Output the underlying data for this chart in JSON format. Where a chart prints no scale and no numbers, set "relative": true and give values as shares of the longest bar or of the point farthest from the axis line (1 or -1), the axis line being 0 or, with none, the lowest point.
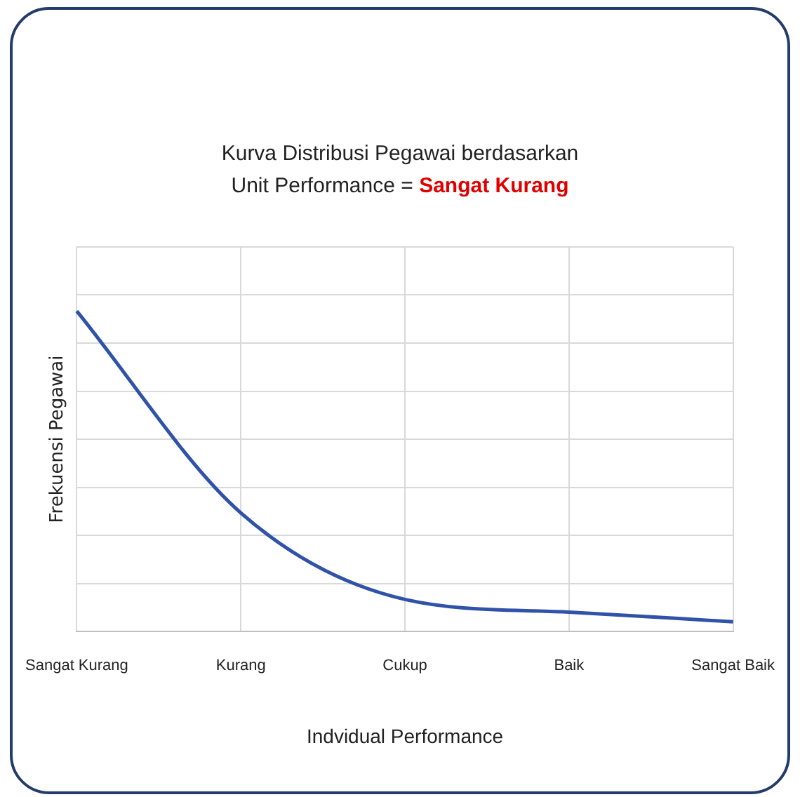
{
  "chart_data": {
    "type": "line",
    "title": "Kurva Distribusi Pegawai berdasarkan",
    "subtitle": "Unit Performance = Sangat Kurang",
    "xlabel": "Indvidual Performance",
    "ylabel": "Frekuensi Pegawai",
    "categories": [
      "Sangat Kurang",
      "Kurang",
      "Cukup",
      "Baik",
      "Sangat Baik"
    ],
    "series": [
      {
        "color": "#3052a8",
        "values": [
          1,
          0.37,
          0.1,
          0.06,
          0.03
        ]
      }
    ],
    "relative": true,
    "grid": true,
    "legend": false,
    "marker": "none"
  }
}
